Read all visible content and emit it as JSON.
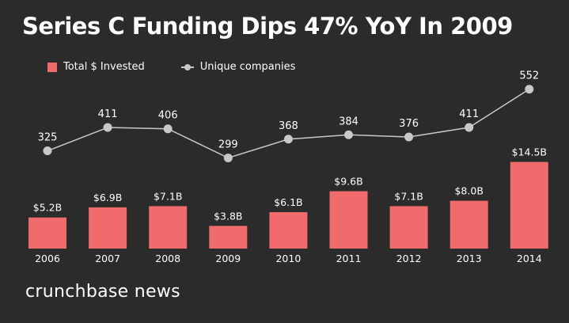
{
  "title": "Series C Funding Dips 47% YoY In 2009",
  "brand": "crunchbase news",
  "colors": {
    "background": "#2b2b2b",
    "bar": "#f06b6b",
    "line": "#c8c8c8",
    "text": "#ffffff"
  },
  "chart_data": {
    "type": "bar",
    "title": "Series C Funding Dips 47% YoY In 2009",
    "categories": [
      "2006",
      "2007",
      "2008",
      "2009",
      "2010",
      "2011",
      "2012",
      "2013",
      "2014"
    ],
    "series": [
      {
        "name": "Total $ Invested",
        "type": "bar",
        "values": [
          5.2,
          6.9,
          7.1,
          3.8,
          6.1,
          9.6,
          7.1,
          8.0,
          14.5
        ],
        "labels": [
          "$5.2B",
          "$6.9B",
          "$7.1B",
          "$3.8B",
          "$6.1B",
          "$9.6B",
          "$7.1B",
          "$8.0B",
          "$14.5B"
        ]
      },
      {
        "name": "Unique companies",
        "type": "line",
        "values": [
          325,
          411,
          406,
          299,
          368,
          384,
          376,
          411,
          552
        ],
        "labels": [
          "325",
          "411",
          "406",
          "299",
          "368",
          "384",
          "376",
          "411",
          "552"
        ]
      }
    ],
    "legend": "top-left",
    "grid": false
  }
}
